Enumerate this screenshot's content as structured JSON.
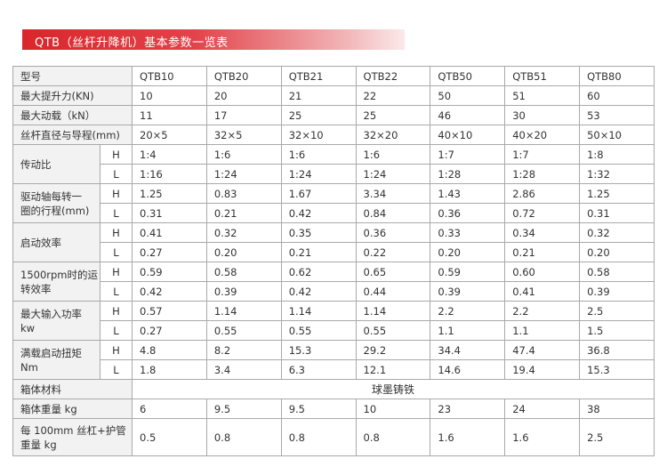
{
  "title": "QTB（丝杆升降机）基本参数一览表",
  "table": {
    "header": [
      "型号",
      "QTB10",
      "QTB20",
      "QTB21",
      "QTB22",
      "QTB50",
      "QTB51",
      "QTB80"
    ],
    "rows": [
      {
        "label": [
          "最大提升力(KN)"
        ],
        "cells": [
          "10",
          "20",
          "21",
          "22",
          "50",
          "51",
          "60"
        ]
      },
      {
        "label": [
          "最大动载（kN）"
        ],
        "cells": [
          "11",
          "17",
          "25",
          "25",
          "46",
          "30",
          "53"
        ]
      },
      {
        "label": [
          "丝杆直径与导程(mm)"
        ],
        "cells": [
          "20×5",
          "32×5",
          "32×10",
          "32×20",
          "40×10",
          "40×20",
          "50×10"
        ]
      },
      {
        "label": [
          "传动比"
        ],
        "sub": [
          {
            "key": "H",
            "cells": [
              "1:4",
              "1:6",
              "1:6",
              "1:6",
              "1:7",
              "1:7",
              "1:8"
            ]
          },
          {
            "key": "L",
            "cells": [
              "1:16",
              "1:24",
              "1:24",
              "1:24",
              "1:28",
              "1:28",
              "1:32"
            ]
          }
        ]
      },
      {
        "label": [
          "驱动轴每转一",
          "圈的行程(mm)"
        ],
        "sub": [
          {
            "key": "H",
            "cells": [
              "1.25",
              "0.83",
              "1.67",
              "3.34",
              "1.43",
              "2.86",
              "1.25"
            ]
          },
          {
            "key": "L",
            "cells": [
              "0.31",
              "0.21",
              "0.42",
              "0.84",
              "0.36",
              "0.72",
              "0.31"
            ]
          }
        ]
      },
      {
        "label": [
          "启动效率"
        ],
        "sub": [
          {
            "key": "H",
            "cells": [
              "0.41",
              "0.32",
              "0.35",
              "0.36",
              "0.33",
              "0.34",
              "0.32"
            ]
          },
          {
            "key": "L",
            "cells": [
              "0.27",
              "0.20",
              "0.21",
              "0.22",
              "0.20",
              "0.21",
              "0.20"
            ]
          }
        ]
      },
      {
        "label": [
          "1500rpm时的运",
          "转效率"
        ],
        "sub": [
          {
            "key": "H",
            "cells": [
              "0.59",
              "0.58",
              "0.62",
              "0.65",
              "0.59",
              "0.60",
              "0.58"
            ]
          },
          {
            "key": "L",
            "cells": [
              "0.42",
              "0.39",
              "0.42",
              "0.44",
              "0.39",
              "0.41",
              "0.39"
            ]
          }
        ]
      },
      {
        "label": [
          "最大输入功率",
          "kw"
        ],
        "sub": [
          {
            "key": "H",
            "cells": [
              "0.57",
              "1.14",
              "1.14",
              "1.14",
              "2.2",
              "2.2",
              "2.5"
            ]
          },
          {
            "key": "L",
            "cells": [
              "0.27",
              "0.55",
              "0.55",
              "0.55",
              "1.1",
              "1.1",
              "1.5"
            ]
          }
        ]
      },
      {
        "label": [
          "满载启动扭矩",
          "Nm"
        ],
        "sub": [
          {
            "key": "H",
            "cells": [
              "4.8",
              "8.2",
              "15.3",
              "29.2",
              "34.4",
              "47.4",
              "36.8"
            ]
          },
          {
            "key": "L",
            "cells": [
              "1.8",
              "3.4",
              "6.3",
              "12.1",
              "14.6",
              "19.4",
              "15.3"
            ]
          }
        ]
      },
      {
        "label": [
          "箱体材料"
        ],
        "merged": "球墨铸铁"
      },
      {
        "label": [
          "箱体重量 kg"
        ],
        "cells": [
          "6",
          "9.5",
          "9.5",
          "10",
          "23",
          "24",
          "38"
        ]
      },
      {
        "label": [
          "每 100mm 丝杠+护管",
          "重量 kg"
        ],
        "cells": [
          "0.5",
          "0.8",
          "0.8",
          "0.8",
          "1.6",
          "1.6",
          "2.5"
        ]
      }
    ]
  }
}
